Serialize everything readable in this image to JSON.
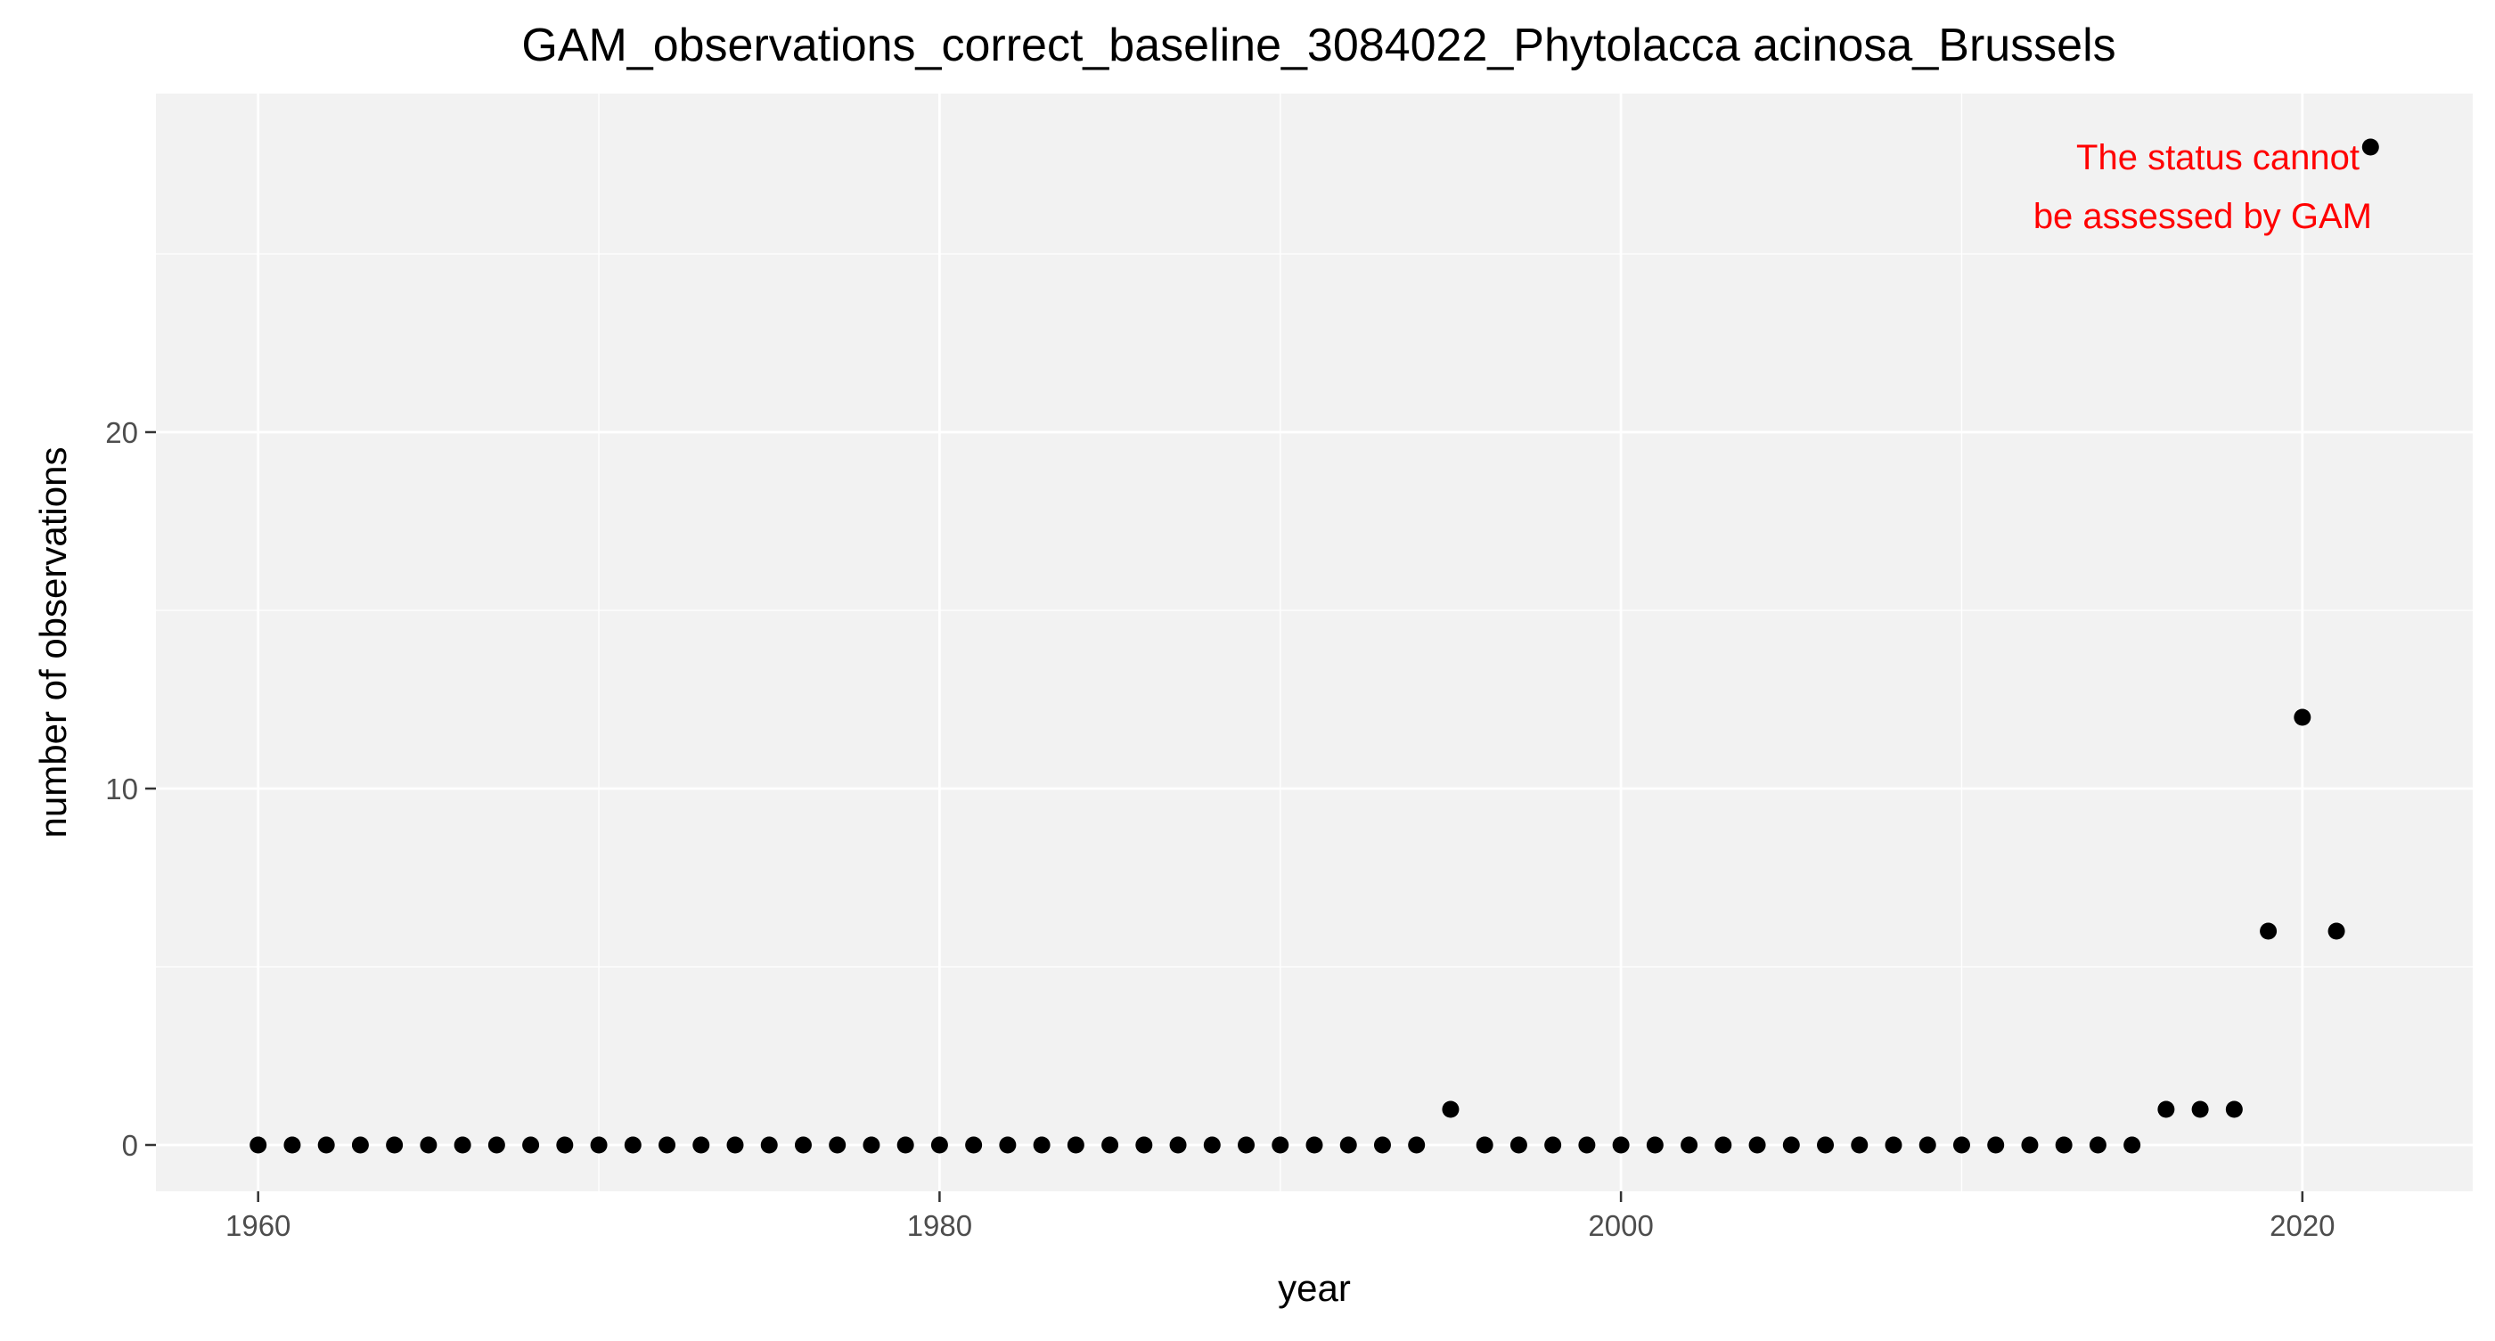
{
  "chart_data": {
    "type": "scatter",
    "title": "GAM_observations_correct_baseline_3084022_Phytolacca acinosa_Brussels",
    "xlabel": "year",
    "ylabel": "number of observations",
    "xlim": [
      1957,
      2025
    ],
    "ylim": [
      -1.3,
      29.5
    ],
    "x_ticks": [
      1960,
      1980,
      2000,
      2020
    ],
    "y_ticks": [
      0,
      10,
      20
    ],
    "grid": true,
    "legend": "none",
    "point_color": "#000000",
    "panel_background": "#f2f2f2",
    "grid_color": "#ffffff",
    "annotation": {
      "lines": [
        "The status cannot",
        "be assessed by GAM"
      ],
      "color": "#ff0000",
      "placement": "top-right"
    },
    "series": [
      {
        "x": [
          1960,
          1961,
          1962,
          1963,
          1964,
          1965,
          1966,
          1967,
          1968,
          1969,
          1970,
          1971,
          1972,
          1973,
          1974,
          1975,
          1976,
          1977,
          1978,
          1979,
          1980,
          1981,
          1982,
          1983,
          1984,
          1985,
          1986,
          1987,
          1988,
          1989,
          1990,
          1991,
          1992,
          1993,
          1994,
          1995,
          1996,
          1997,
          1998,
          1999,
          2000,
          2001,
          2002,
          2003,
          2004,
          2005,
          2006,
          2007,
          2008,
          2009,
          2010,
          2011,
          2012,
          2013,
          2014,
          2015,
          2016,
          2017,
          2018,
          2019,
          2020,
          2021,
          2022
        ],
        "y": [
          0,
          0,
          0,
          0,
          0,
          0,
          0,
          0,
          0,
          0,
          0,
          0,
          0,
          0,
          0,
          0,
          0,
          0,
          0,
          0,
          0,
          0,
          0,
          0,
          0,
          0,
          0,
          0,
          0,
          0,
          0,
          0,
          0,
          0,
          0,
          1,
          0,
          0,
          0,
          0,
          0,
          0,
          0,
          0,
          0,
          0,
          0,
          0,
          0,
          0,
          0,
          0,
          0,
          0,
          0,
          0,
          1,
          1,
          1,
          6,
          12,
          6,
          28
        ]
      }
    ]
  }
}
